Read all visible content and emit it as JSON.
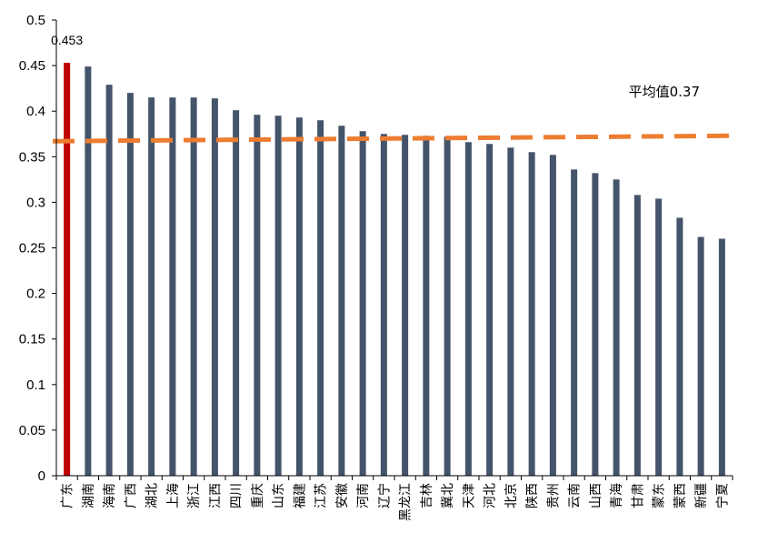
{
  "chart_data": {
    "type": "bar",
    "categories": [
      "广东",
      "湖南",
      "海南",
      "广西",
      "湖北",
      "上海",
      "浙江",
      "江西",
      "四川",
      "重庆",
      "山东",
      "福建",
      "江苏",
      "安徽",
      "河南",
      "辽宁",
      "黑龙江",
      "吉林",
      "冀北",
      "天津",
      "河北",
      "北京",
      "陕西",
      "贵州",
      "云南",
      "山西",
      "青海",
      "甘肃",
      "蒙东",
      "蒙西",
      "新疆",
      "宁夏"
    ],
    "values": [
      0.453,
      0.449,
      0.429,
      0.42,
      0.415,
      0.415,
      0.415,
      0.414,
      0.401,
      0.396,
      0.395,
      0.393,
      0.39,
      0.384,
      0.378,
      0.375,
      0.374,
      0.373,
      0.372,
      0.366,
      0.364,
      0.36,
      0.355,
      0.352,
      0.336,
      0.332,
      0.325,
      0.308,
      0.304,
      0.283,
      0.262,
      0.26
    ],
    "ylim": [
      0,
      0.5
    ],
    "yticks": [
      "0",
      "0.05",
      "0.1",
      "0.15",
      "0.2",
      "0.25",
      "0.3",
      "0.35",
      "0.4",
      "0.45",
      "0.5"
    ],
    "ytick_values": [
      0,
      0.05,
      0.1,
      0.15,
      0.2,
      0.25,
      0.3,
      0.35,
      0.4,
      0.45,
      0.5
    ],
    "average": {
      "value": 0.37,
      "label": "平均值0.37",
      "color": "#ED7D31"
    },
    "highlight": {
      "index": 0,
      "color": "#C00000",
      "label": "0.453"
    },
    "bar_color": "#44546A",
    "grid": false,
    "title": "",
    "xlabel": "",
    "ylabel": ""
  }
}
